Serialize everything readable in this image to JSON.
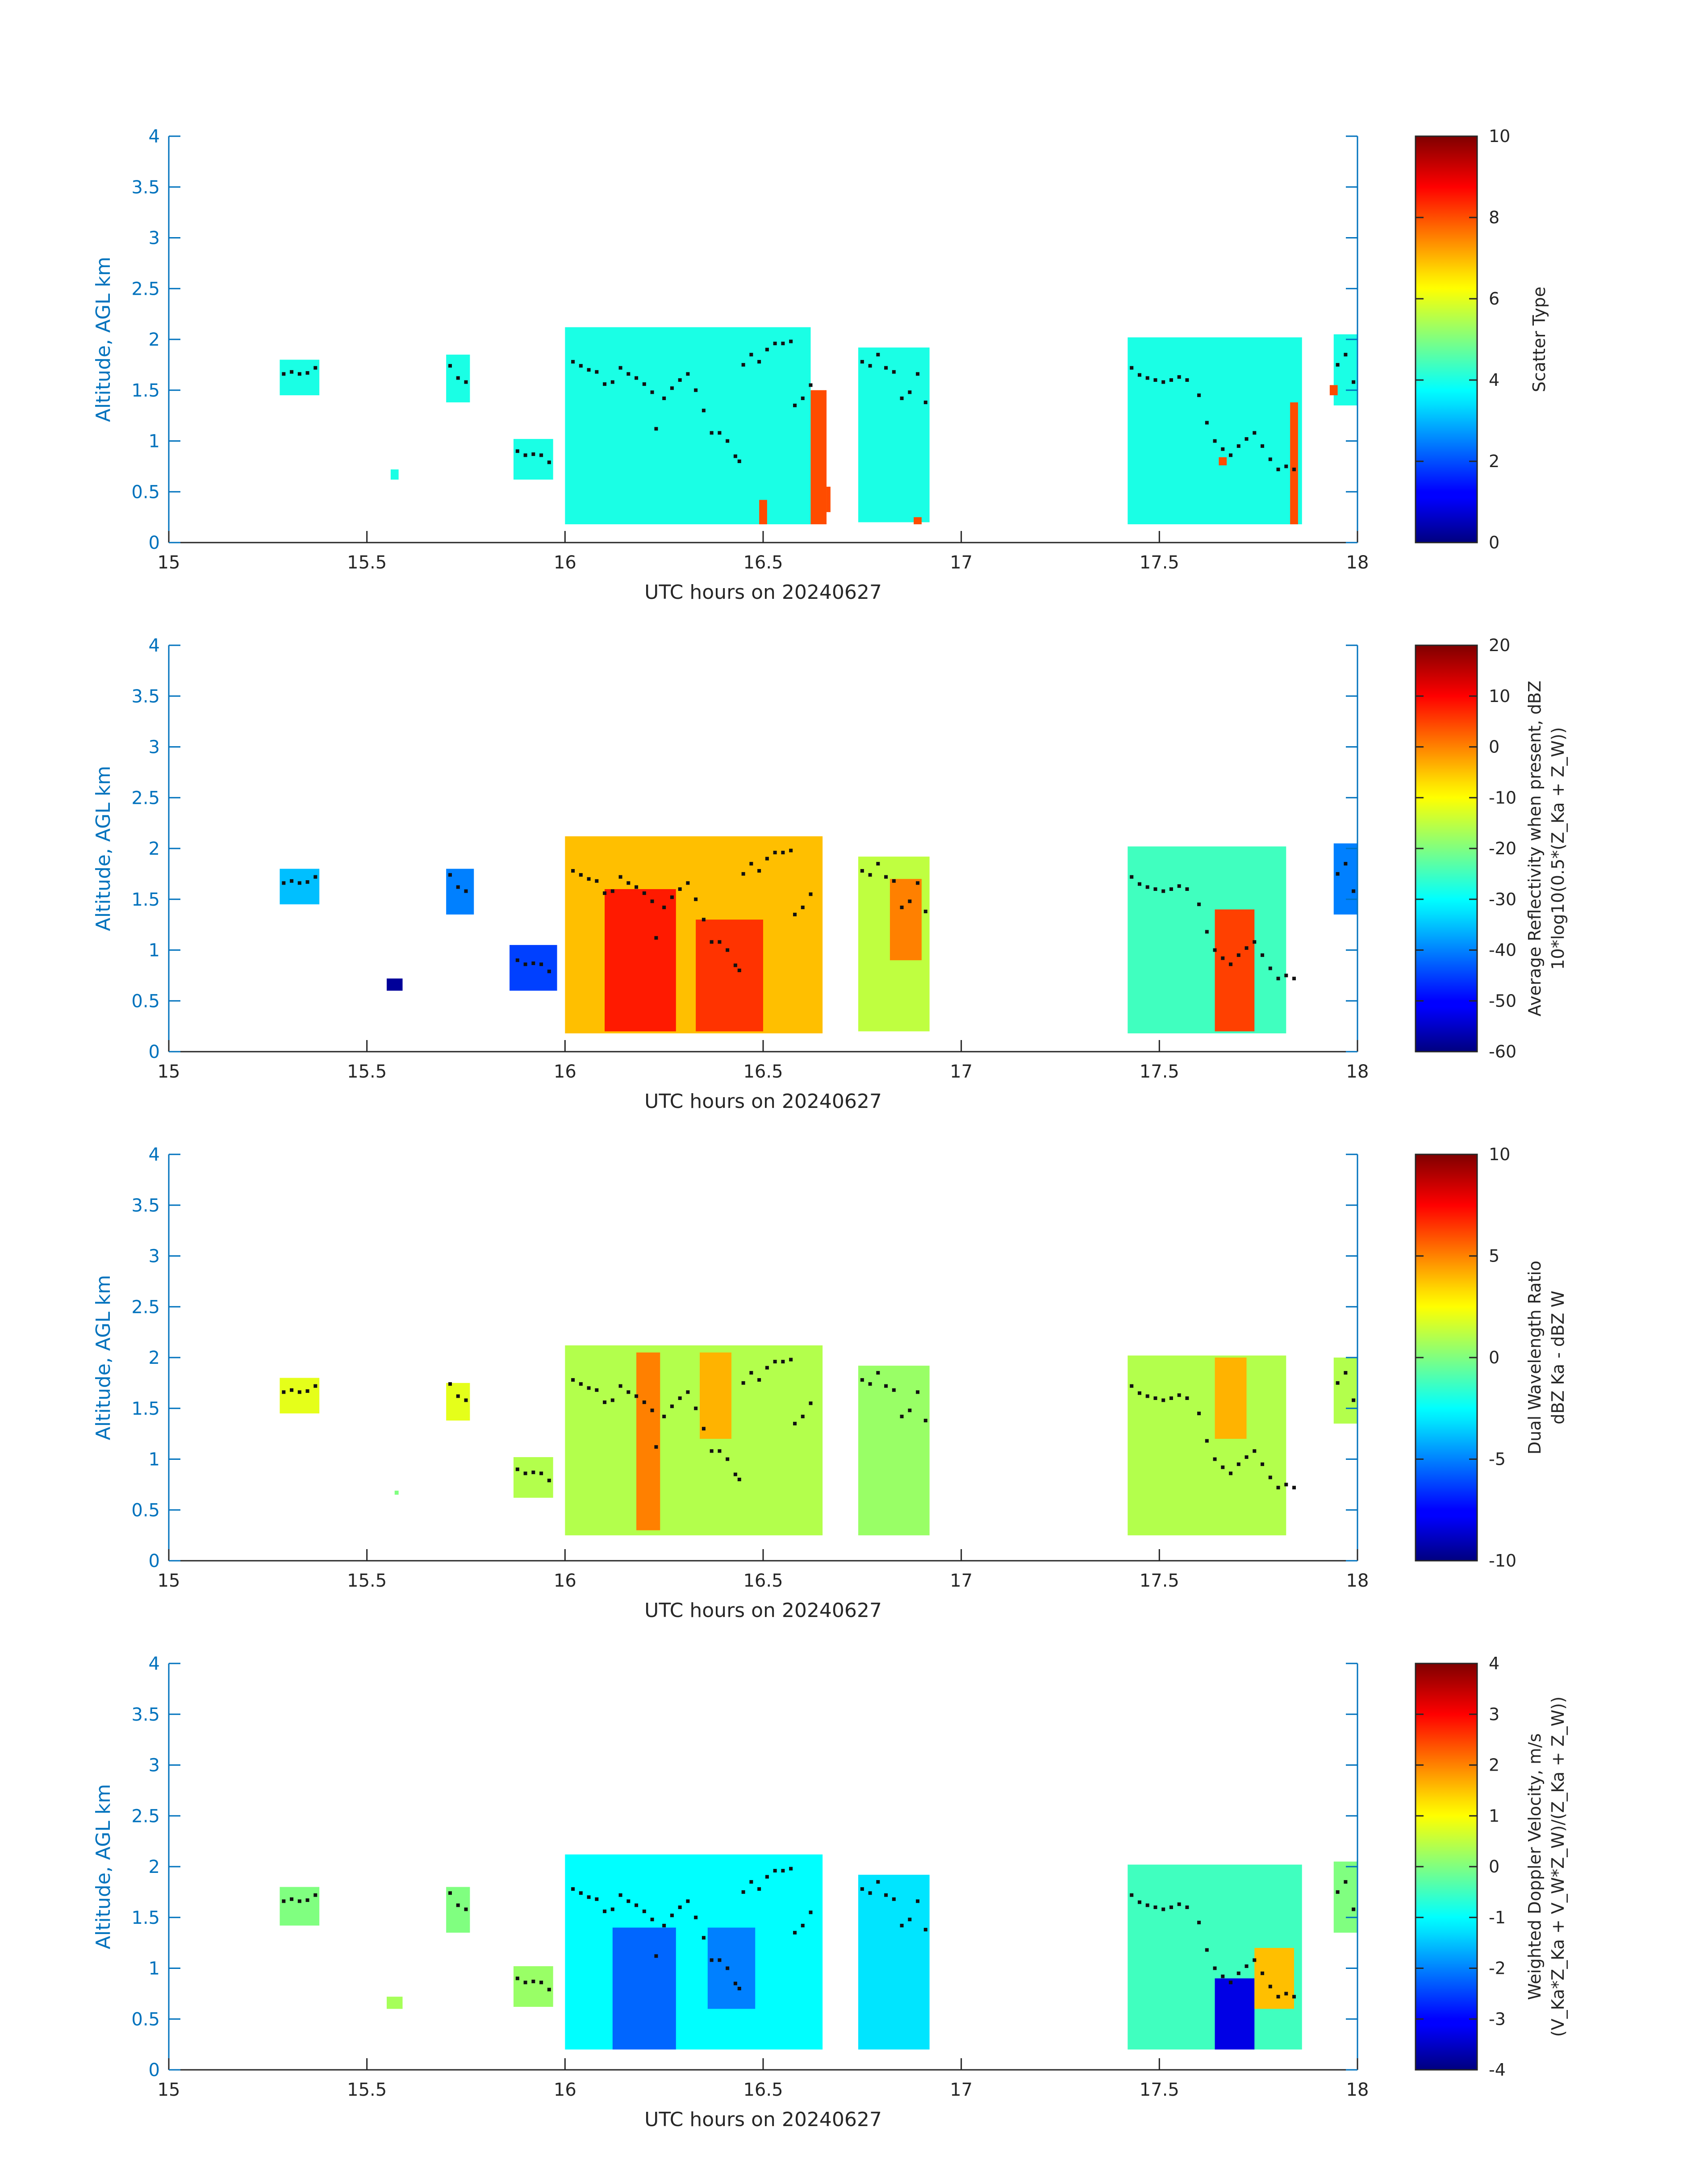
{
  "chart_data": [
    {
      "type": "heatmap",
      "xlabel": "UTC hours on 20240627",
      "ylabel": "Altitude, AGL km",
      "colorbar_label": [
        "Scatter Type"
      ],
      "xlim": [
        15,
        18
      ],
      "ylim": [
        0,
        4
      ],
      "clim": [
        0,
        10
      ],
      "xticks": [
        "15",
        "15.5",
        "16",
        "16.5",
        "17",
        "17.5",
        "18"
      ],
      "yticks": [
        "0",
        "0.5",
        "1",
        "1.5",
        "2",
        "2.5",
        "3",
        "3.5",
        "4"
      ],
      "cticks": [
        "0",
        "2",
        "4",
        "6",
        "8",
        "10"
      ],
      "colormap": "jet",
      "cloud_regions": [
        {
          "x0": 15.28,
          "x1": 15.38,
          "y0": 1.45,
          "y1": 1.8,
          "value": 4
        },
        {
          "x0": 15.56,
          "x1": 15.58,
          "y0": 0.62,
          "y1": 0.72,
          "value": 4
        },
        {
          "x0": 15.7,
          "x1": 15.76,
          "y0": 1.38,
          "y1": 1.85,
          "value": 4
        },
        {
          "x0": 15.87,
          "x1": 15.97,
          "y0": 0.62,
          "y1": 1.02,
          "value": 4
        },
        {
          "x0": 16.0,
          "x1": 16.62,
          "y0": 0.18,
          "y1": 2.12,
          "value": 4
        },
        {
          "x0": 16.74,
          "x1": 16.92,
          "y0": 0.2,
          "y1": 1.92,
          "value": 4
        },
        {
          "x0": 17.42,
          "x1": 17.86,
          "y0": 0.18,
          "y1": 2.02,
          "value": 4
        },
        {
          "x0": 17.94,
          "x1": 18.0,
          "y0": 1.35,
          "y1": 2.05,
          "value": 4
        },
        {
          "x0": 16.49,
          "x1": 16.51,
          "y0": 0.18,
          "y1": 0.42,
          "value": 8
        },
        {
          "x0": 16.62,
          "x1": 16.66,
          "y0": 0.18,
          "y1": 1.5,
          "value": 8
        },
        {
          "x0": 16.66,
          "x1": 16.67,
          "y0": 0.3,
          "y1": 0.55,
          "value": 8
        },
        {
          "x0": 16.88,
          "x1": 16.9,
          "y0": 0.18,
          "y1": 0.25,
          "value": 8
        },
        {
          "x0": 17.65,
          "x1": 17.67,
          "y0": 0.76,
          "y1": 0.84,
          "value": 8
        },
        {
          "x0": 17.83,
          "x1": 17.85,
          "y0": 0.18,
          "y1": 1.38,
          "value": 8
        },
        {
          "x0": 17.93,
          "x1": 17.95,
          "y0": 1.45,
          "y1": 1.55,
          "value": 8
        }
      ]
    },
    {
      "type": "heatmap",
      "xlabel": "UTC hours on 20240627",
      "ylabel": "Altitude, AGL km",
      "colorbar_label": [
        "Average Reflectivity when present, dBZ",
        "10*log10(0.5*(Z_Ka + Z_W))"
      ],
      "xlim": [
        15,
        18
      ],
      "ylim": [
        0,
        4
      ],
      "clim": [
        -60,
        20
      ],
      "xticks": [
        "15",
        "15.5",
        "16",
        "16.5",
        "17",
        "17.5",
        "18"
      ],
      "yticks": [
        "0",
        "0.5",
        "1",
        "1.5",
        "2",
        "2.5",
        "3",
        "3.5",
        "4"
      ],
      "cticks": [
        "-60",
        "-50",
        "-40",
        "-30",
        "-20",
        "-10",
        "0",
        "10",
        "20"
      ],
      "colormap": "jet",
      "cloud_regions": [
        {
          "x0": 15.28,
          "x1": 15.38,
          "y0": 1.45,
          "y1": 1.8,
          "value": -35
        },
        {
          "x0": 15.55,
          "x1": 15.59,
          "y0": 0.6,
          "y1": 0.72,
          "value": -58
        },
        {
          "x0": 15.7,
          "x1": 15.77,
          "y0": 1.35,
          "y1": 1.8,
          "value": -40
        },
        {
          "x0": 15.86,
          "x1": 15.98,
          "y0": 0.6,
          "y1": 1.05,
          "value": -45
        },
        {
          "x0": 16.0,
          "x1": 16.65,
          "y0": 0.18,
          "y1": 2.12,
          "value": -5
        },
        {
          "x0": 16.1,
          "x1": 16.28,
          "y0": 0.2,
          "y1": 1.6,
          "value": 8
        },
        {
          "x0": 16.33,
          "x1": 16.5,
          "y0": 0.2,
          "y1": 1.3,
          "value": 6
        },
        {
          "x0": 16.74,
          "x1": 16.92,
          "y0": 0.2,
          "y1": 1.92,
          "value": -15
        },
        {
          "x0": 16.82,
          "x1": 16.9,
          "y0": 0.9,
          "y1": 1.7,
          "value": 0
        },
        {
          "x0": 17.42,
          "x1": 17.82,
          "y0": 0.18,
          "y1": 2.02,
          "value": -25
        },
        {
          "x0": 17.64,
          "x1": 17.74,
          "y0": 0.2,
          "y1": 1.4,
          "value": 5
        },
        {
          "x0": 17.94,
          "x1": 18.0,
          "y0": 1.35,
          "y1": 2.05,
          "value": -40
        }
      ]
    },
    {
      "type": "heatmap",
      "xlabel": "UTC hours on 20240627",
      "ylabel": "Altitude, AGL km",
      "colorbar_label": [
        "Dual Wavelength Ratio",
        "dBZ Ka - dBZ W"
      ],
      "xlim": [
        15,
        18
      ],
      "ylim": [
        0,
        4
      ],
      "clim": [
        -10,
        10
      ],
      "xticks": [
        "15",
        "15.5",
        "16",
        "16.5",
        "17",
        "17.5",
        "18"
      ],
      "yticks": [
        "0",
        "0.5",
        "1",
        "1.5",
        "2",
        "2.5",
        "3",
        "3.5",
        "4"
      ],
      "cticks": [
        "-10",
        "-5",
        "0",
        "5",
        "10"
      ],
      "colormap": "jet",
      "cloud_regions": [
        {
          "x0": 15.28,
          "x1": 15.38,
          "y0": 1.45,
          "y1": 1.8,
          "value": 2
        },
        {
          "x0": 15.57,
          "x1": 15.58,
          "y0": 0.65,
          "y1": 0.69,
          "value": 0
        },
        {
          "x0": 15.7,
          "x1": 15.76,
          "y0": 1.38,
          "y1": 1.75,
          "value": 2
        },
        {
          "x0": 15.87,
          "x1": 15.97,
          "y0": 0.62,
          "y1": 1.02,
          "value": 1
        },
        {
          "x0": 16.0,
          "x1": 16.65,
          "y0": 0.25,
          "y1": 2.12,
          "value": 1
        },
        {
          "x0": 16.18,
          "x1": 16.24,
          "y0": 0.3,
          "y1": 2.05,
          "value": 5
        },
        {
          "x0": 16.34,
          "x1": 16.42,
          "y0": 1.2,
          "y1": 2.05,
          "value": 4
        },
        {
          "x0": 16.74,
          "x1": 16.92,
          "y0": 0.25,
          "y1": 1.92,
          "value": 0.5
        },
        {
          "x0": 17.42,
          "x1": 17.82,
          "y0": 0.25,
          "y1": 2.02,
          "value": 1
        },
        {
          "x0": 17.64,
          "x1": 17.72,
          "y0": 1.2,
          "y1": 2.0,
          "value": 4
        },
        {
          "x0": 17.94,
          "x1": 18.0,
          "y0": 1.35,
          "y1": 2.0,
          "value": 1
        }
      ]
    },
    {
      "type": "heatmap",
      "xlabel": "UTC hours on 20240627",
      "ylabel": "Altitude, AGL km",
      "colorbar_label": [
        "Weighted Doppler Velocity, m/s",
        "(V_Ka*Z_Ka + V_W*Z_W)/(Z_Ka + Z_W))"
      ],
      "xlim": [
        15,
        18
      ],
      "ylim": [
        0,
        4
      ],
      "clim": [
        -4,
        4
      ],
      "xticks": [
        "15",
        "15.5",
        "16",
        "16.5",
        "17",
        "17.5",
        "18"
      ],
      "yticks": [
        "0",
        "0.5",
        "1",
        "1.5",
        "2",
        "2.5",
        "3",
        "3.5",
        "4"
      ],
      "cticks": [
        "-4",
        "-3",
        "-2",
        "-1",
        "0",
        "1",
        "2",
        "3",
        "4"
      ],
      "colormap": "jet",
      "cloud_regions": [
        {
          "x0": 15.28,
          "x1": 15.38,
          "y0": 1.42,
          "y1": 1.8,
          "value": 0
        },
        {
          "x0": 15.55,
          "x1": 15.59,
          "y0": 0.6,
          "y1": 0.72,
          "value": 0.3
        },
        {
          "x0": 15.7,
          "x1": 15.76,
          "y0": 1.35,
          "y1": 1.8,
          "value": 0
        },
        {
          "x0": 15.87,
          "x1": 15.97,
          "y0": 0.62,
          "y1": 1.02,
          "value": 0.2
        },
        {
          "x0": 16.0,
          "x1": 16.65,
          "y0": 0.2,
          "y1": 2.12,
          "value": -1
        },
        {
          "x0": 16.12,
          "x1": 16.28,
          "y0": 0.2,
          "y1": 1.4,
          "value": -2.2
        },
        {
          "x0": 16.36,
          "x1": 16.48,
          "y0": 0.6,
          "y1": 1.4,
          "value": -2
        },
        {
          "x0": 16.74,
          "x1": 16.92,
          "y0": 0.2,
          "y1": 1.92,
          "value": -1.2
        },
        {
          "x0": 17.42,
          "x1": 17.86,
          "y0": 0.2,
          "y1": 2.02,
          "value": -0.5
        },
        {
          "x0": 17.64,
          "x1": 17.74,
          "y0": 0.2,
          "y1": 0.9,
          "value": -3.2
        },
        {
          "x0": 17.74,
          "x1": 17.84,
          "y0": 0.6,
          "y1": 1.2,
          "value": 1.5
        },
        {
          "x0": 17.94,
          "x1": 18.0,
          "y0": 1.35,
          "y1": 2.05,
          "value": 0
        }
      ]
    }
  ],
  "overlay_points": [
    [
      15.29,
      1.66
    ],
    [
      15.31,
      1.68
    ],
    [
      15.33,
      1.66
    ],
    [
      15.35,
      1.67
    ],
    [
      15.37,
      1.72
    ],
    [
      15.71,
      1.74
    ],
    [
      15.73,
      1.62
    ],
    [
      15.75,
      1.58
    ],
    [
      15.88,
      0.9
    ],
    [
      15.9,
      0.86
    ],
    [
      15.92,
      0.87
    ],
    [
      15.94,
      0.86
    ],
    [
      15.96,
      0.79
    ],
    [
      16.02,
      1.78
    ],
    [
      16.04,
      1.74
    ],
    [
      16.06,
      1.7
    ],
    [
      16.08,
      1.68
    ],
    [
      16.1,
      1.56
    ],
    [
      16.12,
      1.58
    ],
    [
      16.14,
      1.72
    ],
    [
      16.16,
      1.66
    ],
    [
      16.18,
      1.62
    ],
    [
      16.2,
      1.56
    ],
    [
      16.22,
      1.48
    ],
    [
      16.23,
      1.12
    ],
    [
      16.25,
      1.42
    ],
    [
      16.27,
      1.52
    ],
    [
      16.29,
      1.6
    ],
    [
      16.31,
      1.66
    ],
    [
      16.33,
      1.5
    ],
    [
      16.35,
      1.3
    ],
    [
      16.37,
      1.08
    ],
    [
      16.39,
      1.08
    ],
    [
      16.41,
      1.0
    ],
    [
      16.43,
      0.85
    ],
    [
      16.44,
      0.8
    ],
    [
      16.45,
      1.75
    ],
    [
      16.47,
      1.85
    ],
    [
      16.49,
      1.78
    ],
    [
      16.51,
      1.9
    ],
    [
      16.53,
      1.96
    ],
    [
      16.55,
      1.96
    ],
    [
      16.57,
      1.98
    ],
    [
      16.58,
      1.35
    ],
    [
      16.6,
      1.42
    ],
    [
      16.62,
      1.55
    ],
    [
      16.75,
      1.78
    ],
    [
      16.77,
      1.74
    ],
    [
      16.79,
      1.85
    ],
    [
      16.81,
      1.72
    ],
    [
      16.83,
      1.68
    ],
    [
      16.85,
      1.42
    ],
    [
      16.87,
      1.48
    ],
    [
      16.89,
      1.66
    ],
    [
      16.91,
      1.38
    ],
    [
      17.43,
      1.72
    ],
    [
      17.45,
      1.65
    ],
    [
      17.47,
      1.62
    ],
    [
      17.49,
      1.6
    ],
    [
      17.51,
      1.58
    ],
    [
      17.53,
      1.6
    ],
    [
      17.55,
      1.63
    ],
    [
      17.57,
      1.6
    ],
    [
      17.6,
      1.45
    ],
    [
      17.62,
      1.18
    ],
    [
      17.64,
      1.0
    ],
    [
      17.66,
      0.92
    ],
    [
      17.68,
      0.86
    ],
    [
      17.7,
      0.95
    ],
    [
      17.72,
      1.02
    ],
    [
      17.74,
      1.08
    ],
    [
      17.76,
      0.95
    ],
    [
      17.78,
      0.82
    ],
    [
      17.8,
      0.72
    ],
    [
      17.82,
      0.75
    ],
    [
      17.84,
      0.72
    ],
    [
      17.95,
      1.75
    ],
    [
      17.97,
      1.85
    ],
    [
      17.99,
      1.58
    ]
  ]
}
